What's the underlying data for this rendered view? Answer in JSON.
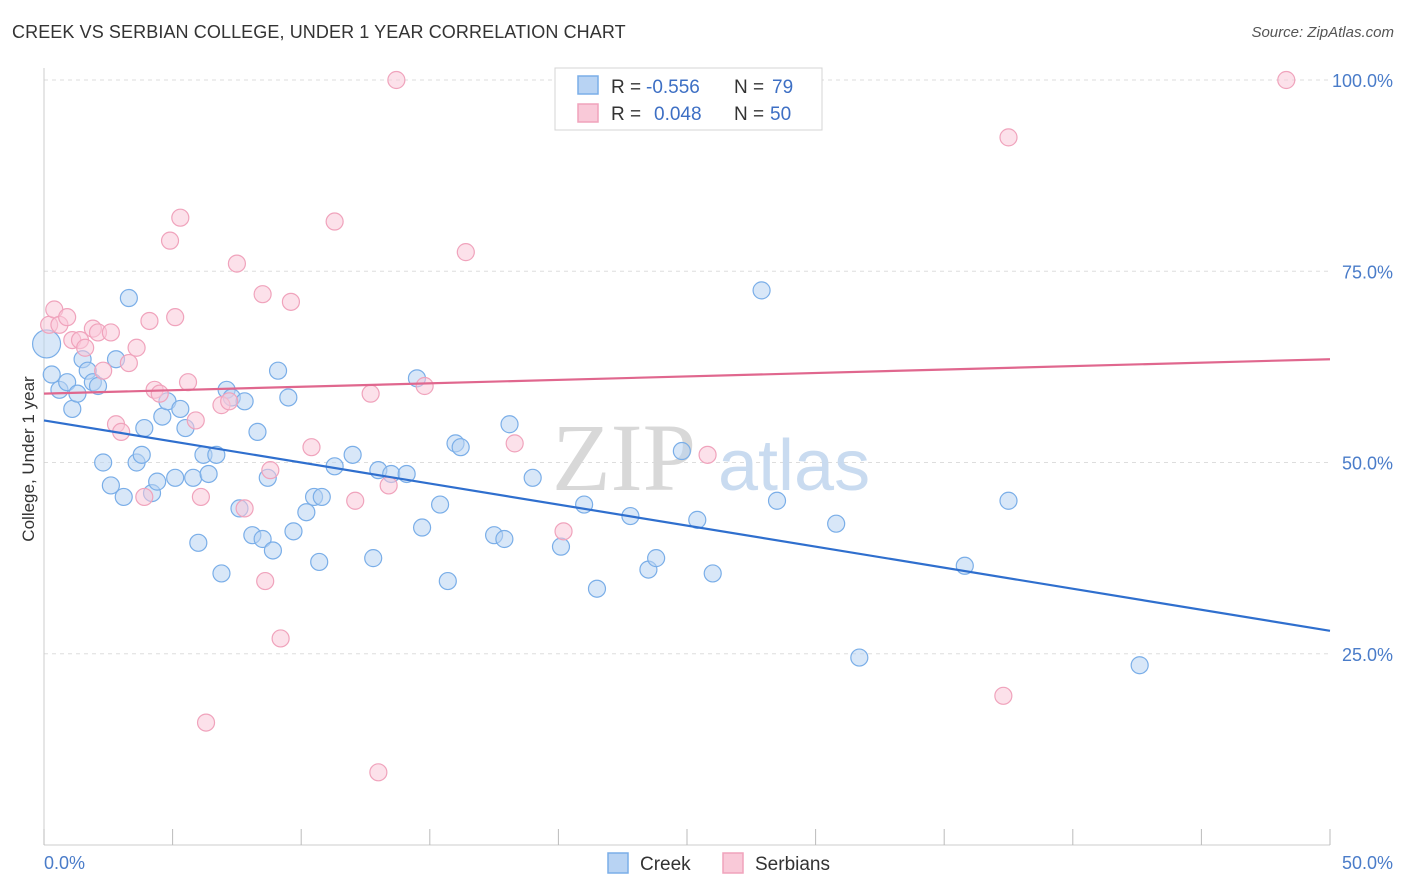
{
  "chart_data": {
    "type": "scatter",
    "title": "CREEK VS SERBIAN COLLEGE, UNDER 1 YEAR CORRELATION CHART",
    "source": "Source: ZipAtlas.com",
    "xlabel": "",
    "ylabel": "College, Under 1 year",
    "xlim": [
      0,
      50
    ],
    "ylim": [
      0,
      102
    ],
    "x_tick_labels": [
      {
        "value": 0,
        "label": "0.0%"
      },
      {
        "value": 50,
        "label": "50.0%"
      }
    ],
    "y_tick_labels": [
      {
        "value": 25,
        "label": "25.0%"
      },
      {
        "value": 50,
        "label": "50.0%"
      },
      {
        "value": 75,
        "label": "75.0%"
      },
      {
        "value": 100,
        "label": "100.0%"
      }
    ],
    "legend": {
      "position": "top-center",
      "entries": [
        {
          "r_label": "R =",
          "r_value": "-0.556",
          "n_label": "N =",
          "n_value": "79"
        },
        {
          "r_label": "R =",
          "r_value": "0.048",
          "n_label": "N =",
          "n_value": "50"
        }
      ]
    },
    "series": [
      {
        "name": "Creek",
        "color": "#7aaee8",
        "fill": "#b8d3f3",
        "line_color": "#2f6fce",
        "trend": {
          "x": [
            0,
            50
          ],
          "y": [
            55.5,
            28.0
          ]
        },
        "points": [
          [
            0.1,
            65.5
          ],
          [
            0.3,
            61.5
          ],
          [
            0.6,
            59.5
          ],
          [
            0.9,
            60.5
          ],
          [
            1.1,
            57.0
          ],
          [
            1.3,
            59.0
          ],
          [
            1.5,
            63.5
          ],
          [
            1.7,
            62.0
          ],
          [
            1.9,
            60.5
          ],
          [
            2.1,
            60.0
          ],
          [
            2.3,
            50.0
          ],
          [
            2.6,
            47.0
          ],
          [
            2.8,
            63.5
          ],
          [
            3.1,
            45.5
          ],
          [
            3.3,
            71.5
          ],
          [
            3.6,
            50.0
          ],
          [
            3.8,
            51.0
          ],
          [
            3.9,
            54.5
          ],
          [
            4.2,
            46.0
          ],
          [
            4.4,
            47.5
          ],
          [
            4.6,
            56.0
          ],
          [
            4.8,
            58.0
          ],
          [
            5.1,
            48.0
          ],
          [
            5.3,
            57.0
          ],
          [
            5.5,
            54.5
          ],
          [
            5.8,
            48.0
          ],
          [
            6.0,
            39.5
          ],
          [
            6.2,
            51.0
          ],
          [
            6.4,
            48.5
          ],
          [
            6.7,
            51.0
          ],
          [
            6.9,
            35.5
          ],
          [
            7.1,
            59.5
          ],
          [
            7.3,
            58.5
          ],
          [
            7.6,
            44.0
          ],
          [
            7.8,
            58.0
          ],
          [
            8.1,
            40.5
          ],
          [
            8.3,
            54.0
          ],
          [
            8.5,
            40.0
          ],
          [
            8.7,
            48.0
          ],
          [
            8.9,
            38.5
          ],
          [
            9.1,
            62.0
          ],
          [
            9.5,
            58.5
          ],
          [
            9.7,
            41.0
          ],
          [
            10.2,
            43.5
          ],
          [
            10.5,
            45.5
          ],
          [
            10.7,
            37.0
          ],
          [
            10.8,
            45.5
          ],
          [
            11.3,
            49.5
          ],
          [
            12.0,
            51.0
          ],
          [
            12.8,
            37.5
          ],
          [
            13.0,
            49.0
          ],
          [
            13.5,
            48.5
          ],
          [
            14.1,
            48.5
          ],
          [
            14.5,
            61.0
          ],
          [
            14.7,
            41.5
          ],
          [
            15.4,
            44.5
          ],
          [
            15.7,
            34.5
          ],
          [
            16.0,
            52.5
          ],
          [
            16.2,
            52.0
          ],
          [
            17.5,
            40.5
          ],
          [
            17.9,
            40.0
          ],
          [
            18.1,
            55.0
          ],
          [
            19.0,
            48.0
          ],
          [
            20.1,
            39.0
          ],
          [
            21.0,
            44.5
          ],
          [
            21.5,
            33.5
          ],
          [
            22.8,
            43.0
          ],
          [
            23.5,
            36.0
          ],
          [
            23.8,
            37.5
          ],
          [
            24.8,
            51.5
          ],
          [
            25.4,
            42.5
          ],
          [
            26.0,
            35.5
          ],
          [
            27.9,
            72.5
          ],
          [
            28.5,
            45.0
          ],
          [
            30.8,
            42.0
          ],
          [
            31.7,
            24.5
          ],
          [
            35.8,
            36.5
          ],
          [
            37.5,
            45.0
          ],
          [
            42.6,
            23.5
          ]
        ]
      },
      {
        "name": "Serbians",
        "color": "#f0a3bc",
        "fill": "#f9c9d8",
        "line_color": "#e0678e",
        "trend": {
          "x": [
            0,
            50
          ],
          "y": [
            59.0,
            63.5
          ]
        },
        "points": [
          [
            0.2,
            68.0
          ],
          [
            0.4,
            70.0
          ],
          [
            0.6,
            68.0
          ],
          [
            0.9,
            69.0
          ],
          [
            1.1,
            66.0
          ],
          [
            1.4,
            66.0
          ],
          [
            1.6,
            65.0
          ],
          [
            1.9,
            67.5
          ],
          [
            2.1,
            67.0
          ],
          [
            2.3,
            62.0
          ],
          [
            2.6,
            67.0
          ],
          [
            2.8,
            55.0
          ],
          [
            3.0,
            54.0
          ],
          [
            3.3,
            63.0
          ],
          [
            3.6,
            65.0
          ],
          [
            3.9,
            45.5
          ],
          [
            4.1,
            68.5
          ],
          [
            4.3,
            59.5
          ],
          [
            4.5,
            59.0
          ],
          [
            4.9,
            79.0
          ],
          [
            5.1,
            69.0
          ],
          [
            5.3,
            82.0
          ],
          [
            5.6,
            60.5
          ],
          [
            5.9,
            55.5
          ],
          [
            6.1,
            45.5
          ],
          [
            6.3,
            16.0
          ],
          [
            6.9,
            57.5
          ],
          [
            7.2,
            58.0
          ],
          [
            7.5,
            76.0
          ],
          [
            7.8,
            44.0
          ],
          [
            8.5,
            72.0
          ],
          [
            8.6,
            34.5
          ],
          [
            8.8,
            49.0
          ],
          [
            9.2,
            27.0
          ],
          [
            9.6,
            71.0
          ],
          [
            10.4,
            52.0
          ],
          [
            11.3,
            81.5
          ],
          [
            12.1,
            45.0
          ],
          [
            12.7,
            59.0
          ],
          [
            13.0,
            9.5
          ],
          [
            13.4,
            47.0
          ],
          [
            13.7,
            100.0
          ],
          [
            14.8,
            60.0
          ],
          [
            16.4,
            77.5
          ],
          [
            18.3,
            52.5
          ],
          [
            20.2,
            41.0
          ],
          [
            25.8,
            51.0
          ],
          [
            37.5,
            92.5
          ],
          [
            37.3,
            19.5
          ],
          [
            48.3,
            100.0
          ]
        ]
      }
    ]
  },
  "bottom_legend": {
    "creek_label": "Creek",
    "serbians_label": "Serbians"
  },
  "watermark": {
    "part1": "ZIP",
    "part2": "atlas"
  }
}
